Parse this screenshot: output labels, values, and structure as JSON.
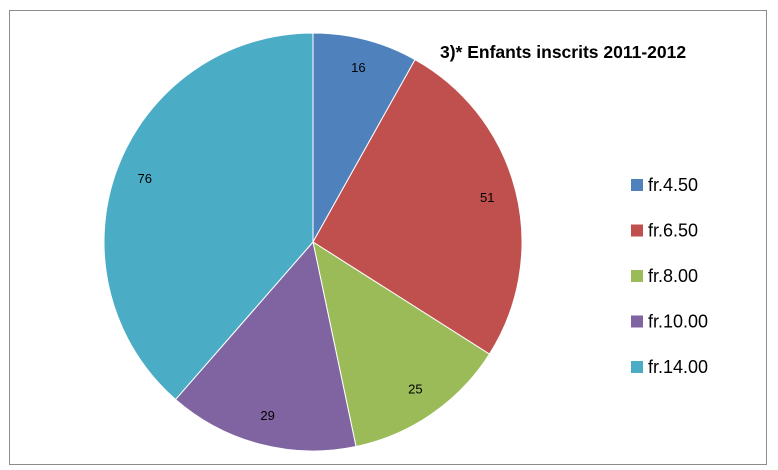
{
  "chart_data": {
    "type": "pie",
    "title": "3)* Enfants inscrits 2011-2012",
    "categories": [
      "fr.4.50",
      "fr.6.50",
      "fr.8.00",
      "fr.10.00",
      "fr.14.00"
    ],
    "values": [
      16,
      51,
      25,
      29,
      76
    ],
    "colors": [
      "#4f81bd",
      "#c0504d",
      "#9bbb59",
      "#8064a2",
      "#4bacc6"
    ],
    "data_labels": [
      "16",
      "51",
      "25",
      "29",
      "76"
    ],
    "legend_position": "right",
    "start_angle_deg": 0,
    "direction": "clockwise"
  }
}
